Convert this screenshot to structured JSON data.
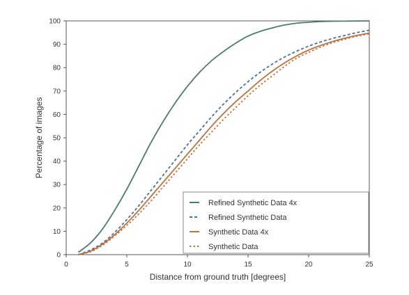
{
  "chart_data": {
    "type": "line",
    "xlabel": "Distance from ground truth [degrees]",
    "ylabel": "Percentage of images",
    "xlim": [
      0,
      25
    ],
    "ylim": [
      0,
      100
    ],
    "xticks": [
      0,
      5,
      10,
      15,
      20,
      25
    ],
    "yticks": [
      0,
      10,
      20,
      30,
      40,
      50,
      60,
      70,
      80,
      90,
      100
    ],
    "grid": false,
    "legend_position": "lower-right",
    "x": [
      1,
      2,
      3,
      4,
      5,
      6,
      7,
      8,
      9,
      10,
      11,
      12,
      13,
      14,
      15,
      16,
      17,
      18,
      19,
      20,
      21,
      22,
      23,
      24,
      25
    ],
    "series": [
      {
        "name": "Refined Synthetic Data 4x",
        "style": "solid",
        "color": "#4a7a6e",
        "values": [
          1,
          5,
          11,
          19,
          28,
          38,
          48,
          57,
          65,
          72,
          78,
          83,
          87,
          90.5,
          93.5,
          95.5,
          97,
          98.2,
          99,
          99.4,
          99.7,
          99.85,
          99.9,
          99.95,
          100
        ]
      },
      {
        "name": "Refined Synthetic Data",
        "style": "dashed",
        "color": "#4a6e9a",
        "values": [
          0,
          2,
          5,
          9.5,
          15,
          21,
          27.5,
          34,
          40.5,
          47,
          53,
          59,
          64.5,
          69.5,
          74,
          78,
          81.5,
          84.5,
          87,
          89.2,
          91,
          92.5,
          93.8,
          95,
          96
        ]
      },
      {
        "name": "Synthetic Data 4x",
        "style": "solid",
        "color": "#c0703a",
        "values": [
          0,
          1.5,
          4.5,
          8.5,
          13.5,
          19,
          25,
          31,
          37,
          43,
          49,
          55,
          60.5,
          65.5,
          70,
          74.5,
          78.5,
          82,
          85,
          87.5,
          89.5,
          91.2,
          92.6,
          93.8,
          94.8
        ]
      },
      {
        "name": "Synthetic Data",
        "style": "dotted",
        "color": "#c0703a",
        "values": [
          0,
          1.2,
          4,
          8,
          12.5,
          17.5,
          23,
          29,
          35,
          41,
          47,
          52.5,
          58,
          63,
          68,
          72.5,
          76.5,
          80.5,
          84,
          86.5,
          88.8,
          90.7,
          92.2,
          93.5,
          94.5
        ]
      }
    ]
  }
}
